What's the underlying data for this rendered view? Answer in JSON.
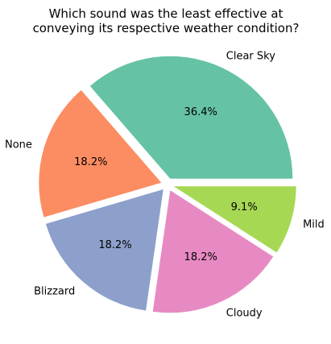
{
  "chart_data": {
    "type": "pie",
    "title_lines": [
      "Which sound was the least effective at",
      "conveying its respective weather condition?"
    ],
    "slices": [
      {
        "label": "Clear Sky",
        "value": 36.4,
        "pct_label": "36.4%",
        "color": "#66c2a5",
        "exploded": true
      },
      {
        "label": "None",
        "value": 18.2,
        "pct_label": "18.2%",
        "color": "#fc8d62",
        "exploded": true
      },
      {
        "label": "Blizzard",
        "value": 18.2,
        "pct_label": "18.2%",
        "color": "#8da0cb",
        "exploded": true
      },
      {
        "label": "Cloudy",
        "value": 18.2,
        "pct_label": "18.2%",
        "color": "#e78ac3",
        "exploded": true
      },
      {
        "label": "Mild",
        "value": 9.1,
        "pct_label": "9.1%",
        "color": "#a6d854",
        "exploded": true
      }
    ],
    "start_angle_deg": 0,
    "direction": "counterclockwise",
    "legend": "none"
  }
}
